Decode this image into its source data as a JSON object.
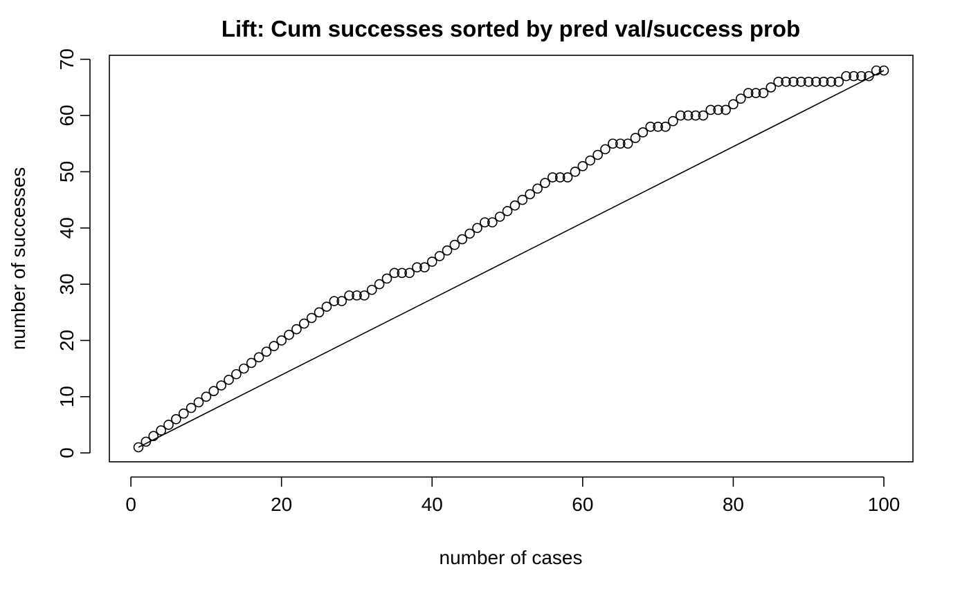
{
  "chart_data": {
    "type": "scatter",
    "title": "Lift: Cum successes sorted by pred val/success prob",
    "xlabel": "number of cases",
    "ylabel": "number of successes",
    "xlim": [
      1,
      100
    ],
    "ylim": [
      1,
      68
    ],
    "x_ticks": [
      0,
      20,
      40,
      60,
      80,
      100
    ],
    "y_ticks": [
      0,
      10,
      20,
      30,
      40,
      50,
      60,
      70
    ],
    "x_tick_labels": [
      "0",
      "20",
      "40",
      "60",
      "80",
      "100"
    ],
    "y_tick_labels": [
      "0",
      "10",
      "20",
      "30",
      "40",
      "50",
      "60",
      "70"
    ],
    "grid": false,
    "marker": "open-circle",
    "x": [
      1,
      2,
      3,
      4,
      5,
      6,
      7,
      8,
      9,
      10,
      11,
      12,
      13,
      14,
      15,
      16,
      17,
      18,
      19,
      20,
      21,
      22,
      23,
      24,
      25,
      26,
      27,
      28,
      29,
      30,
      31,
      32,
      33,
      34,
      35,
      36,
      37,
      38,
      39,
      40,
      41,
      42,
      43,
      44,
      45,
      46,
      47,
      48,
      49,
      50,
      51,
      52,
      53,
      54,
      55,
      56,
      57,
      58,
      59,
      60,
      61,
      62,
      63,
      64,
      65,
      66,
      67,
      68,
      69,
      70,
      71,
      72,
      73,
      74,
      75,
      76,
      77,
      78,
      79,
      80,
      81,
      82,
      83,
      84,
      85,
      86,
      87,
      88,
      89,
      90,
      91,
      92,
      93,
      94,
      95,
      96,
      97,
      98,
      99,
      100
    ],
    "y": [
      1,
      2,
      3,
      4,
      5,
      6,
      7,
      8,
      9,
      10,
      11,
      12,
      13,
      14,
      15,
      16,
      17,
      18,
      19,
      20,
      21,
      22,
      23,
      24,
      25,
      26,
      27,
      27,
      28,
      28,
      28,
      29,
      30,
      31,
      32,
      32,
      32,
      33,
      33,
      34,
      35,
      36,
      37,
      38,
      39,
      40,
      41,
      41,
      42,
      43,
      44,
      45,
      46,
      47,
      48,
      49,
      49,
      49,
      50,
      51,
      52,
      53,
      54,
      55,
      55,
      55,
      56,
      57,
      58,
      58,
      58,
      59,
      60,
      60,
      60,
      60,
      61,
      61,
      61,
      62,
      63,
      64,
      64,
      64,
      65,
      66,
      66,
      66,
      66,
      66,
      66,
      66,
      66,
      66,
      67,
      67,
      67,
      67,
      68,
      68
    ],
    "reference_line": {
      "x": [
        1,
        100
      ],
      "y": [
        1,
        68
      ]
    }
  }
}
